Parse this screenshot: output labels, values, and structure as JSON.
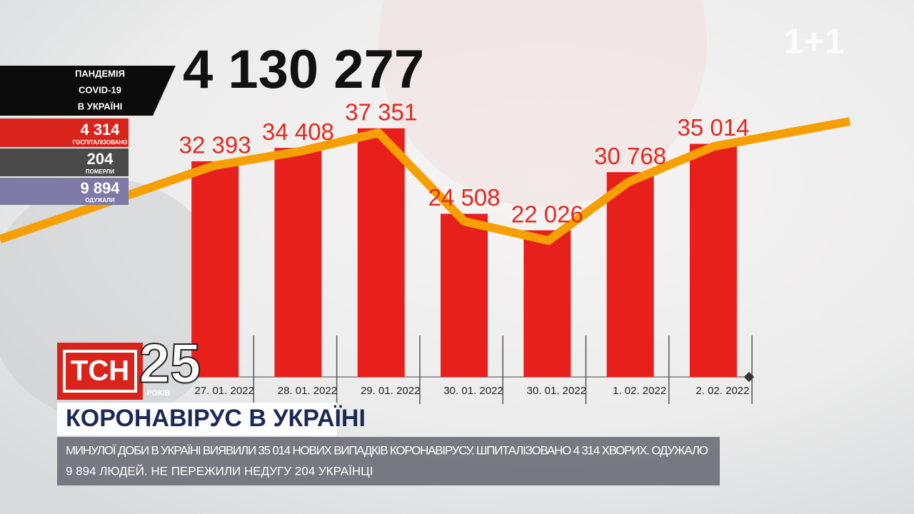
{
  "chart_data": {
    "type": "bar",
    "categories": [
      "27. 01. 2022",
      "28. 01. 2022",
      "29. 01. 2022",
      "30. 01. 2022",
      "30. 01. 2022",
      "1. 02. 2022",
      "2. 02. 2022"
    ],
    "values": [
      32393,
      34408,
      37351,
      24508,
      22026,
      30768,
      35014
    ],
    "value_labels": [
      "32 393",
      "34 408",
      "37 351",
      "24 508",
      "22 026",
      "30 768",
      "35 014"
    ],
    "color": "#e8201c",
    "ylim": [
      0,
      40000
    ]
  },
  "channel_logo": "1+1",
  "total_cases": "4 130 277",
  "stats_panel": {
    "title_lines": [
      "ПАНДЕМІЯ",
      "COVID-19",
      "В УКРАЇНІ"
    ],
    "hospitalized": {
      "value": "4 314",
      "label": "ГОСПІТАЛІЗОВАНО"
    },
    "deaths": {
      "value": "204",
      "label": "ПОМЕРЛИ"
    },
    "recovered": {
      "value": "9 894",
      "label": "ОДУЖАЛИ"
    }
  },
  "show_logo": {
    "name": "ТСН",
    "anniversary": "25",
    "anniversary_label": "РОКІВ"
  },
  "headline": "КОРОНАВІРУС В УКРАЇНІ",
  "ticker": [
    "МИНУЛОЇ ДОБИ В УКРАЇНІ ВИЯВИЛИ 35 014 НОВИХ ВИПАДКІВ КОРОНАВІРУСУ. ШПИТАЛІЗОВАНО 4 314 ХВОРИХ. ОДУЖАЛО",
    "9 894 ЛЮДЕЙ. НЕ ПЕРЕЖИЛИ НЕДУГУ 204 УКРАЇНЦІ"
  ]
}
